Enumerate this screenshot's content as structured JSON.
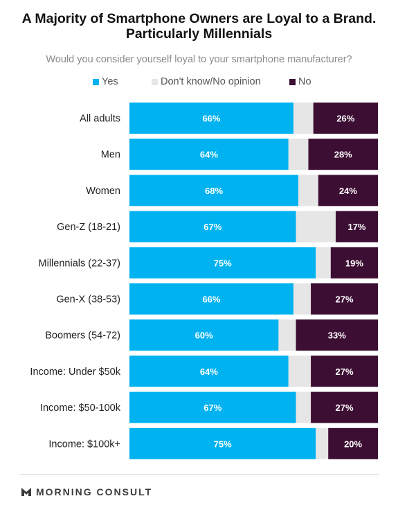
{
  "title_line1": "A Majority of Smartphone Owners are Loyal to a Brand.",
  "title_line2": "Particularly Millennials",
  "subtitle": "Would you consider yourself loyal to your smartphone manufacturer?",
  "legend": [
    {
      "label": "Yes",
      "color": "#00b2f0"
    },
    {
      "label": "Don't know/No opinion",
      "color": "#e6e6e6"
    },
    {
      "label": "No",
      "color": "#3d0e33"
    }
  ],
  "footer": {
    "brand": "MORNING CONSULT"
  },
  "chart_data": {
    "type": "bar",
    "orientation": "horizontal",
    "stacked": true,
    "categories": [
      "All adults",
      "Men",
      "Women",
      "Gen-Z (18-21)",
      "Millennials (22-37)",
      "Gen-X (38-53)",
      "Boomers (54-72)",
      "Income: Under $50k",
      "Income: $50-100k",
      "Income: $100k+"
    ],
    "series": [
      {
        "name": "Yes",
        "values": [
          66,
          64,
          68,
          67,
          75,
          66,
          60,
          64,
          67,
          75
        ],
        "labels": [
          "66%",
          "64%",
          "68%",
          "67%",
          "75%",
          "66%",
          "60%",
          "64%",
          "67%",
          "75%"
        ]
      },
      {
        "name": "Don't know/No opinion",
        "values": [
          8,
          8,
          8,
          16,
          6,
          7,
          7,
          9,
          6,
          5
        ],
        "labels": []
      },
      {
        "name": "No",
        "values": [
          26,
          28,
          24,
          17,
          19,
          27,
          33,
          27,
          27,
          20
        ],
        "labels": [
          "26%",
          "28%",
          "24%",
          "17%",
          "19%",
          "27%",
          "33%",
          "27%",
          "27%",
          "20%"
        ]
      }
    ],
    "xlim": [
      0,
      100
    ],
    "grid": false,
    "legend_position": "top"
  }
}
